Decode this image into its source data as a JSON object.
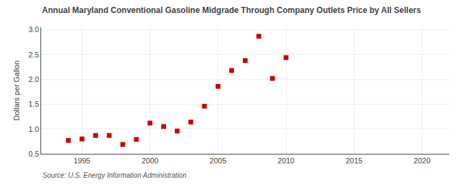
{
  "chart_data": {
    "type": "scatter",
    "title": "Annual Maryland Conventional Gasoline Midgrade Through Company Outlets Price by All Sellers",
    "y_label": "Dollars per Gallon",
    "annotations": [
      "Source: U.S. Energy Information Administration"
    ],
    "x": [
      1994,
      1995,
      1996,
      1997,
      1998,
      1999,
      2000,
      2001,
      2002,
      2003,
      2004,
      2005,
      2006,
      2007,
      2008,
      2009,
      2010
    ],
    "values": [
      0.77,
      0.8,
      0.87,
      0.87,
      0.69,
      0.79,
      1.12,
      1.05,
      0.96,
      1.14,
      1.46,
      1.86,
      2.18,
      2.38,
      2.87,
      2.02,
      2.44
    ],
    "color": "#cc0000",
    "marker": "square",
    "xlim": [
      1992,
      2022
    ],
    "ylim": [
      0.5,
      3.05
    ],
    "xticks": [
      1995,
      2000,
      2005,
      2010,
      2015,
      2020
    ],
    "yticks": [
      0.5,
      {
        "value": 1.0,
        "label": "1.0"
      },
      1.5,
      {
        "value": 2.0,
        "label": "2.0"
      },
      2.5,
      {
        "value": 3.0,
        "label": "3.0"
      }
    ],
    "grid": true
  }
}
